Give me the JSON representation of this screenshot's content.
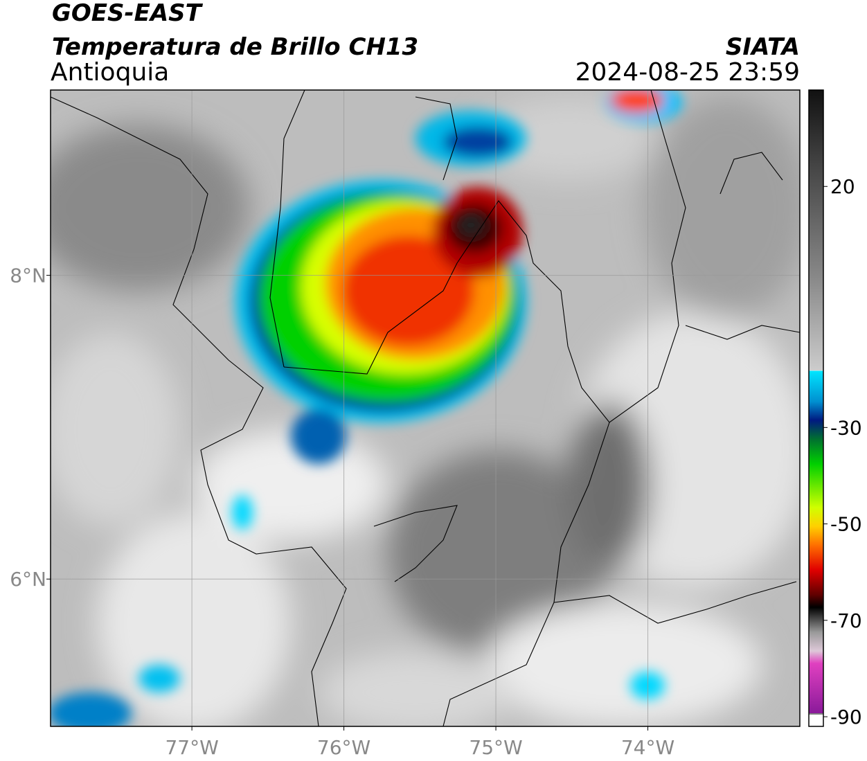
{
  "header": {
    "title": "GOES-EAST",
    "subtitle": "Temperatura de Brillo CH13",
    "region": "Antioquia",
    "source": "SIATA",
    "datetime": "2024-08-25 23:59"
  },
  "map": {
    "xlim": [
      -77.93,
      -73.0
    ],
    "ylim": [
      5.03,
      9.22
    ],
    "xticks": [
      {
        "value": -77,
        "label": "77°W"
      },
      {
        "value": -76,
        "label": "76°W"
      },
      {
        "value": -75,
        "label": "75°W"
      },
      {
        "value": -74,
        "label": "74°W"
      }
    ],
    "yticks": [
      {
        "value": 8,
        "label": "8°N"
      },
      {
        "value": 6,
        "label": "6°N"
      }
    ],
    "grid": true
  },
  "colorbar": {
    "lim": [
      -92,
      40
    ],
    "ticks": [
      20,
      -30,
      -50,
      -70,
      -90
    ]
  }
}
